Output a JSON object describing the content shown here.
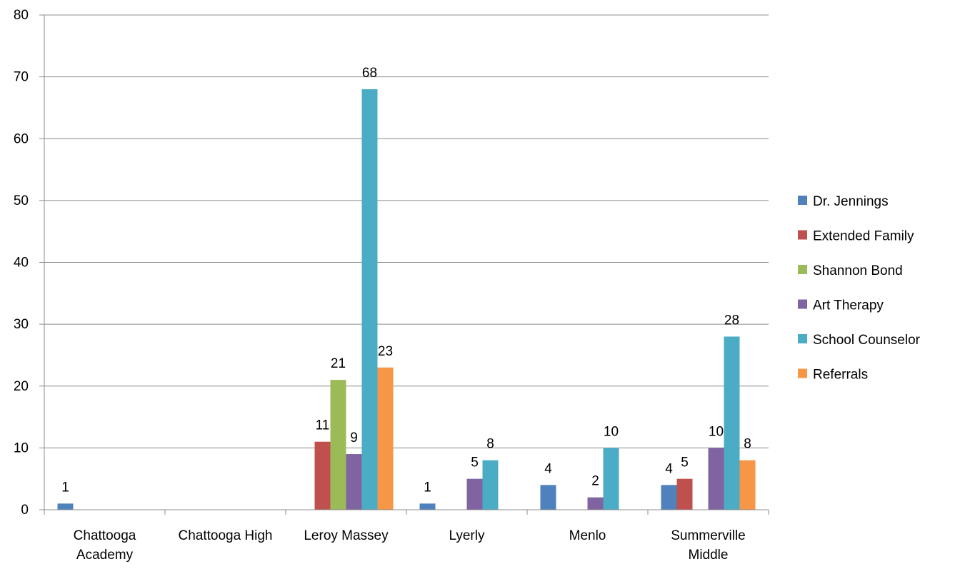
{
  "chart_data": {
    "type": "bar",
    "categories": [
      [
        "Chattooga",
        "Academy"
      ],
      [
        "Chattooga High"
      ],
      [
        "Leroy Massey"
      ],
      [
        "Lyerly"
      ],
      [
        "Menlo"
      ],
      [
        "Summerville",
        "Middle"
      ]
    ],
    "series": [
      {
        "name": "Dr. Jennings",
        "color": "#4F81BD",
        "values": [
          1,
          null,
          null,
          1,
          4,
          4
        ]
      },
      {
        "name": "Extended Family",
        "color": "#C0504D",
        "values": [
          null,
          null,
          11,
          null,
          null,
          5
        ]
      },
      {
        "name": "Shannon Bond",
        "color": "#9BBB59",
        "values": [
          null,
          null,
          21,
          null,
          null,
          null
        ]
      },
      {
        "name": "Art Therapy",
        "color": "#8064A2",
        "values": [
          null,
          null,
          9,
          5,
          2,
          10
        ]
      },
      {
        "name": "School Counselor",
        "color": "#4BACC6",
        "values": [
          null,
          null,
          68,
          8,
          10,
          28
        ]
      },
      {
        "name": "Referrals",
        "color": "#F79646",
        "values": [
          null,
          null,
          23,
          null,
          null,
          8
        ]
      }
    ],
    "ylim": [
      0,
      80
    ],
    "yticks": [
      0,
      10,
      20,
      30,
      40,
      50,
      60,
      70,
      80
    ],
    "grid": true,
    "legend_position": "right",
    "data_labels": true
  }
}
